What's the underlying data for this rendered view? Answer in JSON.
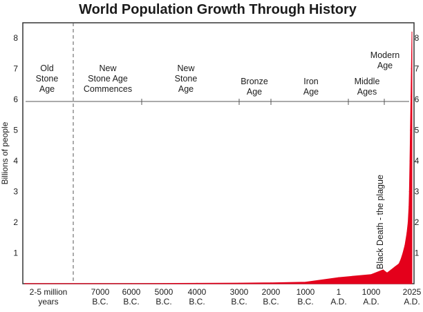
{
  "chart_data": {
    "type": "area",
    "title": "World Population Growth Through History",
    "ylabel": "Billions of people",
    "ylim": [
      0,
      8.5
    ],
    "y_ticks": [
      "1",
      "2",
      "3",
      "4",
      "5",
      "6",
      "7",
      "8"
    ],
    "x_tick_labels": [
      [
        "2-5 million",
        "years"
      ],
      [
        "7000",
        "B.C."
      ],
      [
        "6000",
        "B.C."
      ],
      [
        "5000",
        "B.C."
      ],
      [
        "4000",
        "B.C."
      ],
      [
        "3000",
        "B.C."
      ],
      [
        "2000",
        "B.C."
      ],
      [
        "1000",
        "B.C."
      ],
      [
        "1",
        "A.D."
      ],
      [
        "1000",
        "A.D."
      ],
      [
        "2025",
        "A.D."
      ]
    ],
    "eras": [
      [
        "Old",
        "Stone",
        "Age"
      ],
      [
        "New",
        "Stone Age",
        "Commences"
      ],
      [
        "New",
        "Stone",
        "Age"
      ],
      [
        "Bronze",
        "Age"
      ],
      [
        "Iron",
        "Age"
      ],
      [
        "Middle",
        "Ages"
      ],
      [
        "Modern",
        "Age"
      ]
    ],
    "annotations": [
      "Black Death - the plague"
    ],
    "series": [
      {
        "color": "#e4001b",
        "points": [
          [
            "2-5 million years",
            0.004
          ],
          [
            "7000 B.C.",
            0.005
          ],
          [
            "6000 B.C.",
            0.007
          ],
          [
            "5000 B.C.",
            0.01
          ],
          [
            "4000 B.C.",
            0.014
          ],
          [
            "3000 B.C.",
            0.02
          ],
          [
            "2000 B.C.",
            0.03
          ],
          [
            "1000 B.C.",
            0.05
          ],
          [
            "1 A.D.",
            0.2
          ],
          [
            "1000 A.D.",
            0.3
          ],
          [
            "1300 A.D.",
            0.45
          ],
          [
            "1400 A.D.",
            0.35
          ],
          [
            "1500 A.D.",
            0.45
          ],
          [
            "1600 A.D.",
            0.55
          ],
          [
            "1700 A.D.",
            0.65
          ],
          [
            "1750 A.D.",
            0.8
          ],
          [
            "1800 A.D.",
            1.0
          ],
          [
            "1850 A.D.",
            1.25
          ],
          [
            "1900 A.D.",
            1.65
          ],
          [
            "1930 A.D.",
            2.0
          ],
          [
            "1950 A.D.",
            2.5
          ],
          [
            "1960 A.D.",
            3.0
          ],
          [
            "1975 A.D.",
            4.0
          ],
          [
            "1987 A.D.",
            5.0
          ],
          [
            "2000 A.D.",
            6.1
          ],
          [
            "2011 A.D.",
            7.0
          ],
          [
            "2025 A.D.",
            8.2
          ]
        ]
      }
    ],
    "colors": {
      "fill": "#e4001b",
      "text": "#1b1b1b",
      "frame": "#333333",
      "divider": "#555555"
    }
  }
}
